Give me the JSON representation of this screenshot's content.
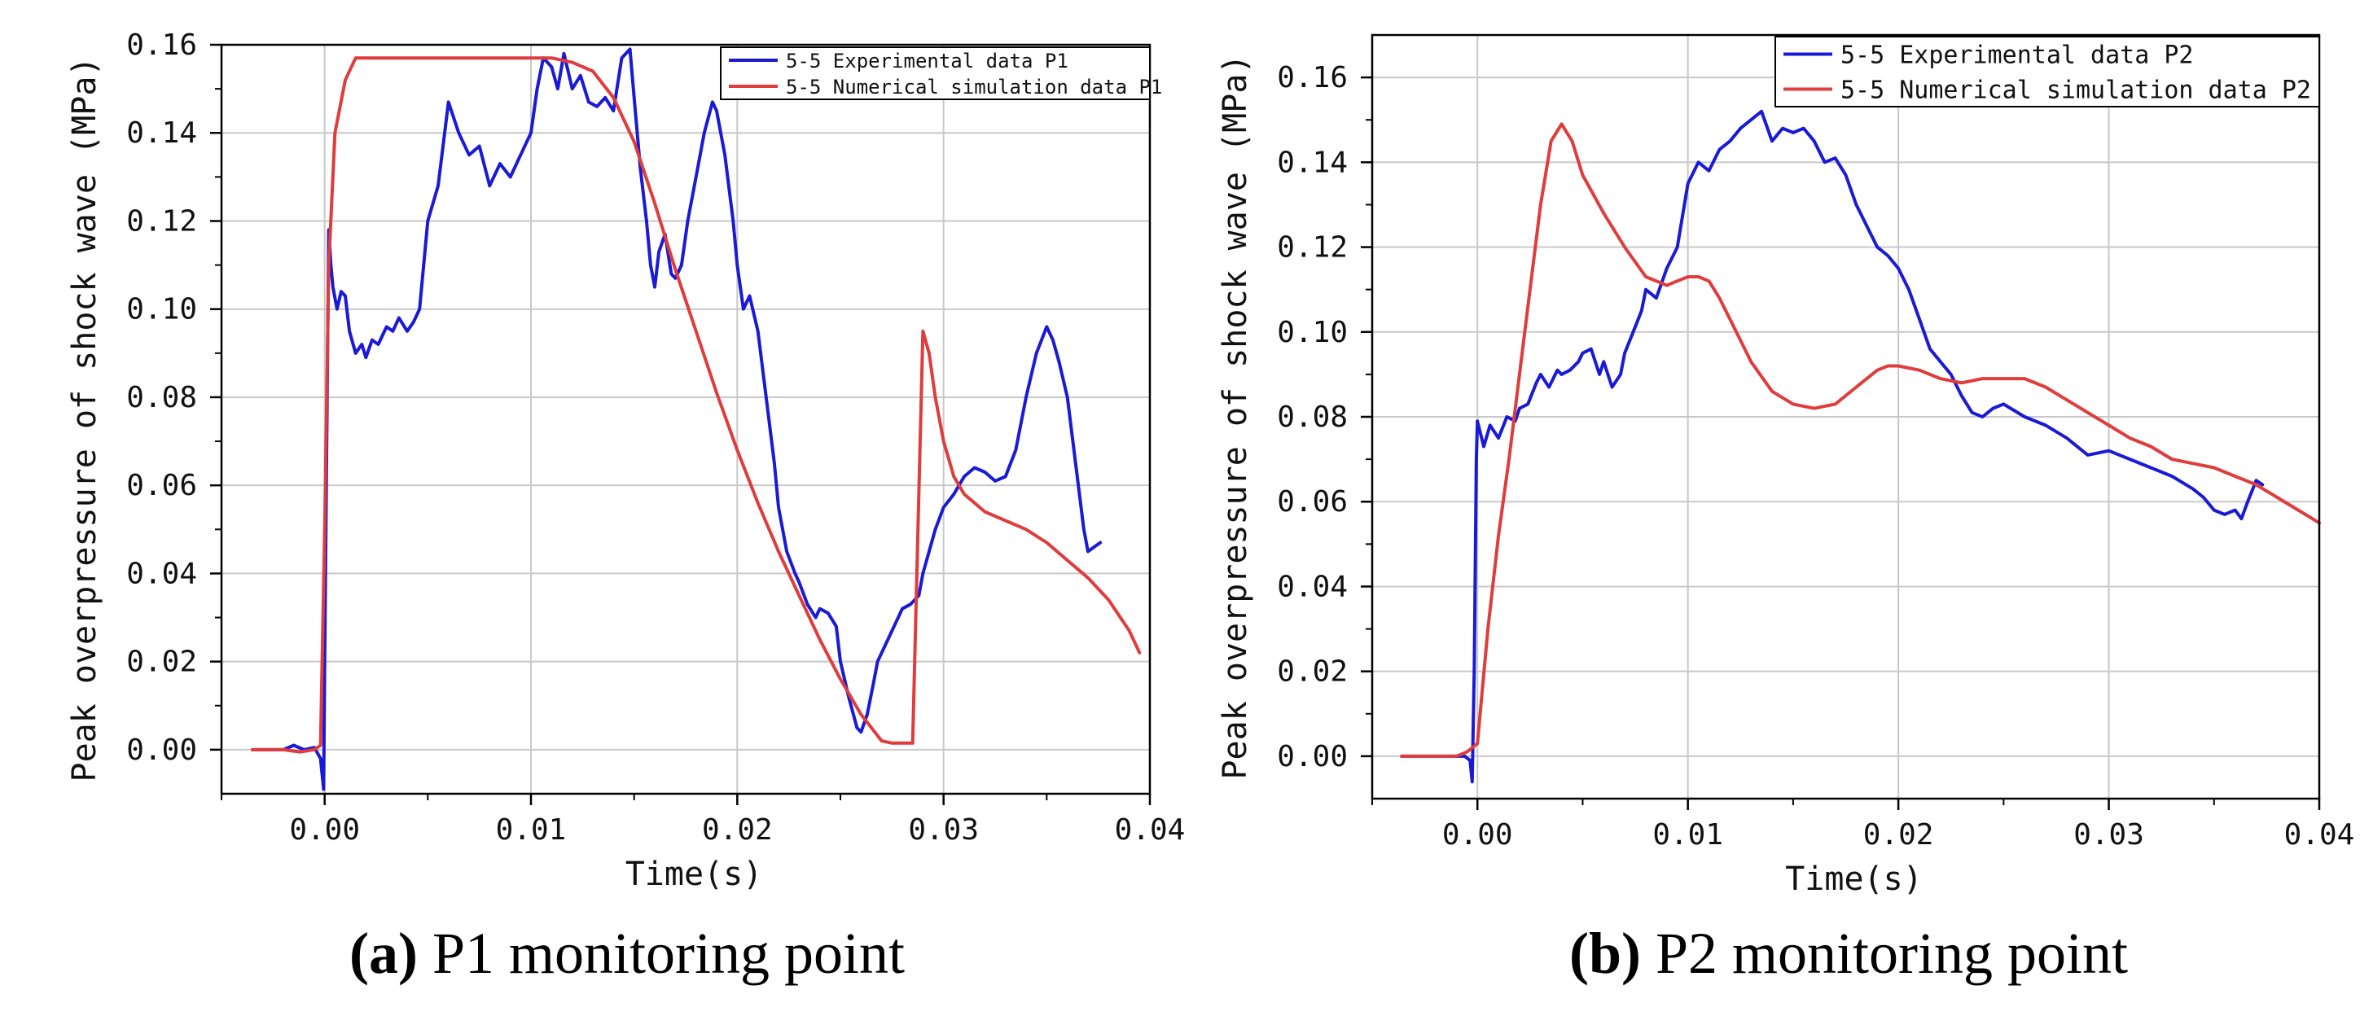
{
  "colors": {
    "experimental": "#1a1ad6",
    "simulation": "#e03c3c",
    "axis": "#000000",
    "grid": "#c8c8c8"
  },
  "chart_data": [
    {
      "type": "line",
      "panel_letter": "a",
      "caption_text": " P1 monitoring point",
      "xlabel": "Time(s)",
      "ylabel": "Peak overpressure of shock wave (MPa)",
      "xlim": [
        -0.005,
        0.04
      ],
      "ylim": [
        -0.01,
        0.16
      ],
      "xticks": [
        0.0,
        0.01,
        0.02,
        0.03,
        0.04
      ],
      "xtick_labels": [
        "0.00",
        "0.01",
        "0.02",
        "0.03",
        "0.04"
      ],
      "yticks": [
        0.0,
        0.02,
        0.04,
        0.06,
        0.08,
        0.1,
        0.12,
        0.14,
        0.16
      ],
      "ytick_labels": [
        "0.00",
        "0.02",
        "0.04",
        "0.06",
        "0.08",
        "0.10",
        "0.12",
        "0.14",
        "0.16"
      ],
      "grid": true,
      "legend_position": "top-right",
      "series": [
        {
          "name": "5-5 Experimental data P1",
          "color_key": "experimental",
          "x": [
            -0.0035,
            -0.002,
            -0.0015,
            -0.001,
            -0.0005,
            -0.0002,
            -5e-05,
            0.0,
            0.0001,
            0.0002,
            0.0003,
            0.0004,
            0.0006,
            0.0008,
            0.001,
            0.0012,
            0.0015,
            0.0018,
            0.002,
            0.0023,
            0.0026,
            0.003,
            0.0033,
            0.0036,
            0.004,
            0.0043,
            0.0046,
            0.005,
            0.0055,
            0.006,
            0.0065,
            0.007,
            0.0075,
            0.008,
            0.0085,
            0.009,
            0.0095,
            0.01,
            0.0103,
            0.0106,
            0.011,
            0.0113,
            0.0116,
            0.012,
            0.0124,
            0.0128,
            0.0132,
            0.0136,
            0.014,
            0.0144,
            0.0148,
            0.015,
            0.0153,
            0.0156,
            0.0158,
            0.016,
            0.0162,
            0.0165,
            0.0168,
            0.017,
            0.0173,
            0.0176,
            0.018,
            0.0184,
            0.0188,
            0.019,
            0.0194,
            0.0198,
            0.02,
            0.0203,
            0.0206,
            0.021,
            0.0214,
            0.0218,
            0.022,
            0.0224,
            0.0228,
            0.023,
            0.0234,
            0.0238,
            0.024,
            0.0244,
            0.0248,
            0.025,
            0.0254,
            0.0258,
            0.026,
            0.0263,
            0.0266,
            0.0268,
            0.027,
            0.0273,
            0.0276,
            0.028,
            0.0284,
            0.0288,
            0.029,
            0.0293,
            0.0296,
            0.03,
            0.0305,
            0.031,
            0.0315,
            0.032,
            0.0325,
            0.033,
            0.0335,
            0.034,
            0.0345,
            0.035,
            0.0353,
            0.0356,
            0.036,
            0.0364,
            0.0368,
            0.037,
            0.0373,
            0.0376
          ],
          "y": [
            0.0,
            0.0,
            0.001,
            0.0,
            0.0005,
            -0.002,
            -0.009,
            0.02,
            0.07,
            0.118,
            0.11,
            0.105,
            0.1,
            0.104,
            0.103,
            0.095,
            0.09,
            0.092,
            0.089,
            0.093,
            0.092,
            0.096,
            0.095,
            0.098,
            0.095,
            0.097,
            0.1,
            0.12,
            0.128,
            0.147,
            0.14,
            0.135,
            0.137,
            0.128,
            0.133,
            0.13,
            0.135,
            0.14,
            0.15,
            0.157,
            0.155,
            0.15,
            0.158,
            0.15,
            0.153,
            0.147,
            0.146,
            0.148,
            0.145,
            0.157,
            0.159,
            0.148,
            0.132,
            0.12,
            0.11,
            0.105,
            0.113,
            0.117,
            0.108,
            0.107,
            0.11,
            0.12,
            0.13,
            0.14,
            0.147,
            0.145,
            0.135,
            0.12,
            0.11,
            0.1,
            0.103,
            0.095,
            0.08,
            0.065,
            0.055,
            0.045,
            0.04,
            0.038,
            0.033,
            0.03,
            0.032,
            0.031,
            0.028,
            0.02,
            0.012,
            0.005,
            0.004,
            0.008,
            0.015,
            0.02,
            0.022,
            0.025,
            0.028,
            0.032,
            0.033,
            0.035,
            0.04,
            0.045,
            0.05,
            0.055,
            0.058,
            0.062,
            0.064,
            0.063,
            0.061,
            0.062,
            0.068,
            0.08,
            0.09,
            0.096,
            0.093,
            0.088,
            0.08,
            0.065,
            0.05,
            0.045,
            0.046,
            0.047
          ]
        },
        {
          "name": "5-5 Numerical simulation data P1",
          "color_key": "simulation",
          "x": [
            -0.0035,
            -0.002,
            -0.0012,
            -0.0005,
            -0.0002,
            0.0,
            0.0002,
            0.0005,
            0.001,
            0.0015,
            0.002,
            0.004,
            0.006,
            0.008,
            0.01,
            0.011,
            0.012,
            0.013,
            0.014,
            0.015,
            0.016,
            0.017,
            0.018,
            0.019,
            0.02,
            0.021,
            0.022,
            0.023,
            0.024,
            0.025,
            0.026,
            0.027,
            0.0275,
            0.028,
            0.0285,
            0.029,
            0.0293,
            0.0296,
            0.03,
            0.0305,
            0.031,
            0.0315,
            0.032,
            0.033,
            0.034,
            0.035,
            0.036,
            0.037,
            0.038,
            0.039,
            0.0395
          ],
          "y": [
            0.0,
            0.0,
            -0.0005,
            0.0,
            0.001,
            0.05,
            0.11,
            0.14,
            0.152,
            0.157,
            0.157,
            0.157,
            0.157,
            0.157,
            0.157,
            0.157,
            0.156,
            0.154,
            0.148,
            0.138,
            0.124,
            0.109,
            0.095,
            0.081,
            0.068,
            0.056,
            0.045,
            0.035,
            0.025,
            0.016,
            0.008,
            0.002,
            0.0015,
            0.0015,
            0.0015,
            0.095,
            0.09,
            0.08,
            0.07,
            0.062,
            0.058,
            0.056,
            0.054,
            0.052,
            0.05,
            0.047,
            0.043,
            0.039,
            0.034,
            0.027,
            0.022
          ]
        }
      ]
    },
    {
      "type": "line",
      "panel_letter": "b",
      "caption_text": " P2 monitoring point",
      "xlabel": "Time(s)",
      "ylabel": "Peak overpressure of shock wave (MPa)",
      "xlim": [
        -0.005,
        0.04
      ],
      "ylim": [
        -0.01,
        0.17
      ],
      "xticks": [
        0.0,
        0.01,
        0.02,
        0.03,
        0.04
      ],
      "xtick_labels": [
        "0.00",
        "0.01",
        "0.02",
        "0.03",
        "0.04"
      ],
      "yticks": [
        0.0,
        0.02,
        0.04,
        0.06,
        0.08,
        0.1,
        0.12,
        0.14,
        0.16
      ],
      "ytick_labels": [
        "0.00",
        "0.02",
        "0.04",
        "0.06",
        "0.08",
        "0.10",
        "0.12",
        "0.14",
        "0.16"
      ],
      "grid": true,
      "legend_position": "top-right",
      "series": [
        {
          "name": "5-5 Experimental data P2",
          "color_key": "experimental",
          "x": [
            -0.0036,
            -0.002,
            -0.0012,
            -0.0006,
            -0.00035,
            -0.00025,
            -0.00015,
            -5e-05,
            0.0,
            0.0003,
            0.0006,
            0.001,
            0.0014,
            0.0018,
            0.002,
            0.0024,
            0.0028,
            0.003,
            0.0034,
            0.0038,
            0.004,
            0.0044,
            0.0048,
            0.005,
            0.0054,
            0.0058,
            0.006,
            0.0064,
            0.0068,
            0.007,
            0.0074,
            0.0078,
            0.008,
            0.0085,
            0.009,
            0.0095,
            0.01,
            0.0105,
            0.011,
            0.0115,
            0.012,
            0.0125,
            0.013,
            0.0135,
            0.014,
            0.0145,
            0.015,
            0.0155,
            0.016,
            0.0165,
            0.017,
            0.0175,
            0.018,
            0.0185,
            0.019,
            0.0195,
            0.02,
            0.0205,
            0.021,
            0.0215,
            0.022,
            0.0225,
            0.023,
            0.0235,
            0.024,
            0.0245,
            0.025,
            0.026,
            0.027,
            0.028,
            0.029,
            0.03,
            0.031,
            0.032,
            0.033,
            0.034,
            0.0345,
            0.035,
            0.0355,
            0.036,
            0.0363,
            0.0366,
            0.037,
            0.0373
          ],
          "y": [
            0.0,
            0.0,
            0.0,
            0.0,
            -0.001,
            -0.006,
            0.02,
            0.07,
            0.079,
            0.073,
            0.078,
            0.075,
            0.08,
            0.079,
            0.082,
            0.083,
            0.088,
            0.09,
            0.087,
            0.091,
            0.09,
            0.091,
            0.093,
            0.095,
            0.096,
            0.09,
            0.093,
            0.087,
            0.09,
            0.095,
            0.1,
            0.105,
            0.11,
            0.108,
            0.115,
            0.12,
            0.135,
            0.14,
            0.138,
            0.143,
            0.145,
            0.148,
            0.15,
            0.152,
            0.145,
            0.148,
            0.147,
            0.148,
            0.145,
            0.14,
            0.141,
            0.137,
            0.13,
            0.125,
            0.12,
            0.118,
            0.115,
            0.11,
            0.103,
            0.096,
            0.093,
            0.09,
            0.085,
            0.081,
            0.08,
            0.082,
            0.083,
            0.08,
            0.078,
            0.075,
            0.071,
            0.072,
            0.07,
            0.068,
            0.066,
            0.063,
            0.061,
            0.058,
            0.057,
            0.058,
            0.056,
            0.06,
            0.065,
            0.064
          ]
        },
        {
          "name": "5-5 Numerical simulation data P2",
          "color_key": "simulation",
          "x": [
            -0.0036,
            -0.002,
            -0.001,
            -0.0005,
            0.0,
            0.0005,
            0.001,
            0.0015,
            0.002,
            0.0025,
            0.003,
            0.0035,
            0.004,
            0.0045,
            0.005,
            0.006,
            0.007,
            0.008,
            0.0085,
            0.009,
            0.0095,
            0.01,
            0.0105,
            0.011,
            0.0115,
            0.012,
            0.013,
            0.014,
            0.015,
            0.016,
            0.017,
            0.018,
            0.0185,
            0.019,
            0.0195,
            0.02,
            0.021,
            0.022,
            0.023,
            0.024,
            0.025,
            0.026,
            0.027,
            0.028,
            0.029,
            0.03,
            0.031,
            0.032,
            0.033,
            0.034,
            0.035,
            0.036,
            0.037,
            0.038,
            0.039,
            0.04
          ],
          "y": [
            0.0,
            0.0,
            0.0,
            0.001,
            0.003,
            0.03,
            0.052,
            0.07,
            0.09,
            0.11,
            0.13,
            0.145,
            0.149,
            0.145,
            0.137,
            0.128,
            0.12,
            0.113,
            0.112,
            0.111,
            0.112,
            0.113,
            0.113,
            0.112,
            0.108,
            0.103,
            0.093,
            0.086,
            0.083,
            0.082,
            0.083,
            0.087,
            0.089,
            0.091,
            0.092,
            0.092,
            0.091,
            0.089,
            0.088,
            0.089,
            0.089,
            0.089,
            0.087,
            0.084,
            0.081,
            0.078,
            0.075,
            0.073,
            0.07,
            0.069,
            0.068,
            0.066,
            0.064,
            0.061,
            0.058,
            0.055
          ]
        }
      ]
    }
  ]
}
